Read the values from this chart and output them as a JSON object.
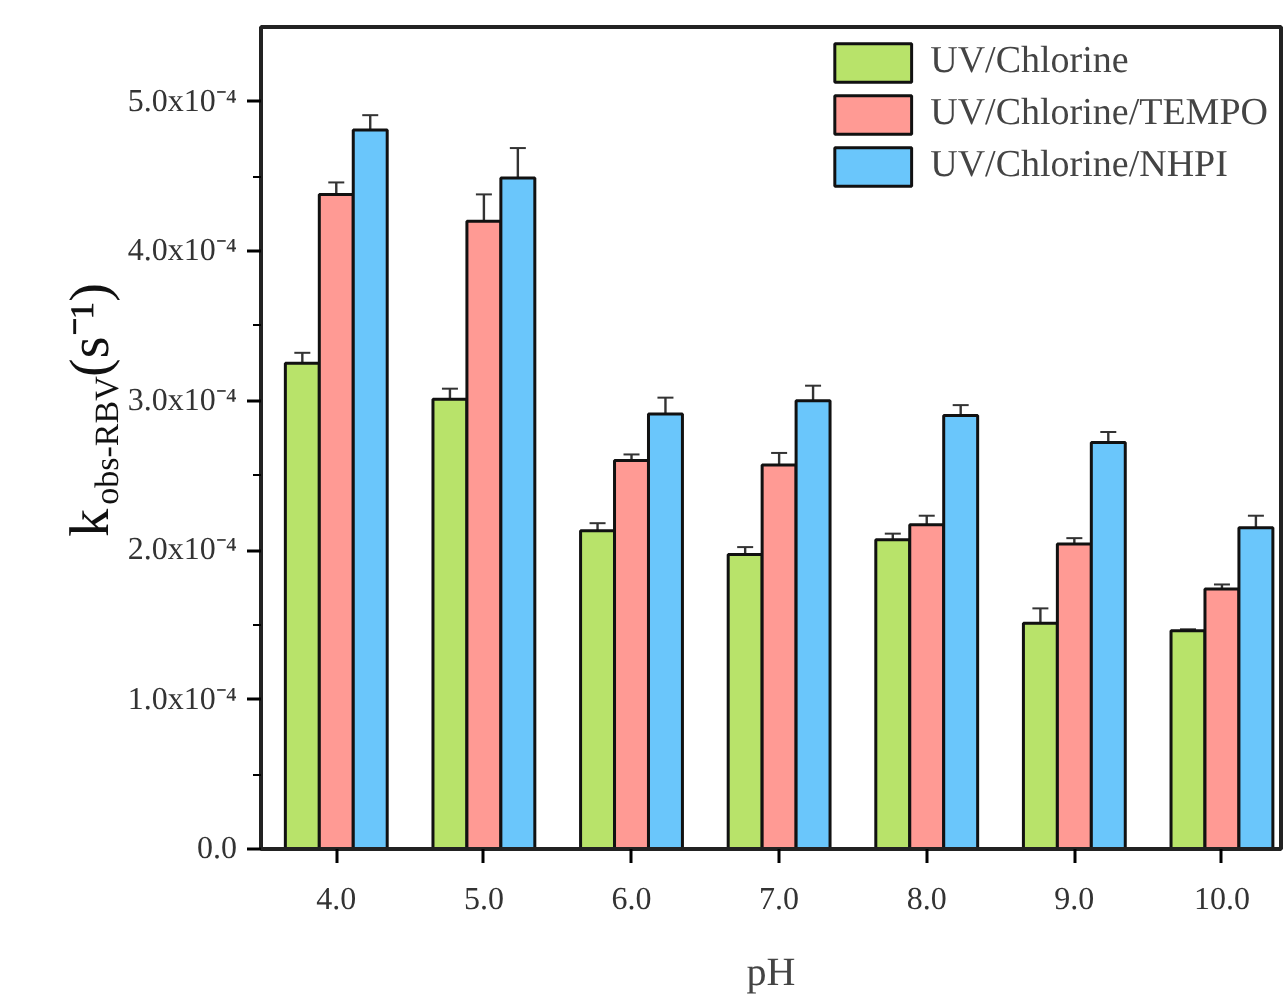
{
  "chart_data": {
    "type": "bar",
    "xlabel": "pH",
    "ylabel": "k$_{obs-RBV}$(s⁻¹)",
    "categories": [
      "4.0",
      "5.0",
      "6.0",
      "7.0",
      "8.0",
      "9.0",
      "10.0"
    ],
    "series": [
      {
        "name": "UV/Chlorine",
        "color": "#b8e36a",
        "values": [
          0.000325,
          0.000301,
          0.000213,
          0.000197,
          0.000207,
          0.000151,
          0.000146
        ],
        "errors": [
          7e-06,
          7e-06,
          5e-06,
          5e-06,
          4e-06,
          1e-05,
          1e-06
        ]
      },
      {
        "name": "UV/Chlorine/TEMPO",
        "color": "#ff9a94",
        "values": [
          0.000438,
          0.00042,
          0.00026,
          0.000257,
          0.000217,
          0.000204,
          0.000174
        ],
        "errors": [
          8e-06,
          1.8e-05,
          4e-06,
          8e-06,
          6e-06,
          4e-06,
          3e-06
        ]
      },
      {
        "name": "UV/Chlorine/NHPI",
        "color": "#6ac6fb",
        "values": [
          0.000481,
          0.000449,
          0.000291,
          0.0003,
          0.00029,
          0.000272,
          0.000215
        ],
        "errors": [
          1e-05,
          2e-05,
          1.1e-05,
          1e-05,
          7e-06,
          7e-06,
          8e-06
        ]
      }
    ],
    "ylim": [
      0,
      0.00055
    ],
    "yticks": [
      {
        "value": 0,
        "label": "0.0"
      },
      {
        "value": 5e-05,
        "label": null
      },
      {
        "value": 0.0001,
        "label": "1.0x10⁻⁴"
      },
      {
        "value": 0.00015,
        "label": null
      },
      {
        "value": 0.0002,
        "label": "2.0x10⁻⁴"
      },
      {
        "value": 0.00025,
        "label": null
      },
      {
        "value": 0.0003,
        "label": "3.0x10⁻⁴"
      },
      {
        "value": 0.00035,
        "label": null
      },
      {
        "value": 0.0004,
        "label": "4.0x10⁻⁴"
      },
      {
        "value": 0.00045,
        "label": null
      },
      {
        "value": 0.0005,
        "label": "5.0x10⁻⁴"
      }
    ],
    "grid": false,
    "legend": "top right"
  }
}
